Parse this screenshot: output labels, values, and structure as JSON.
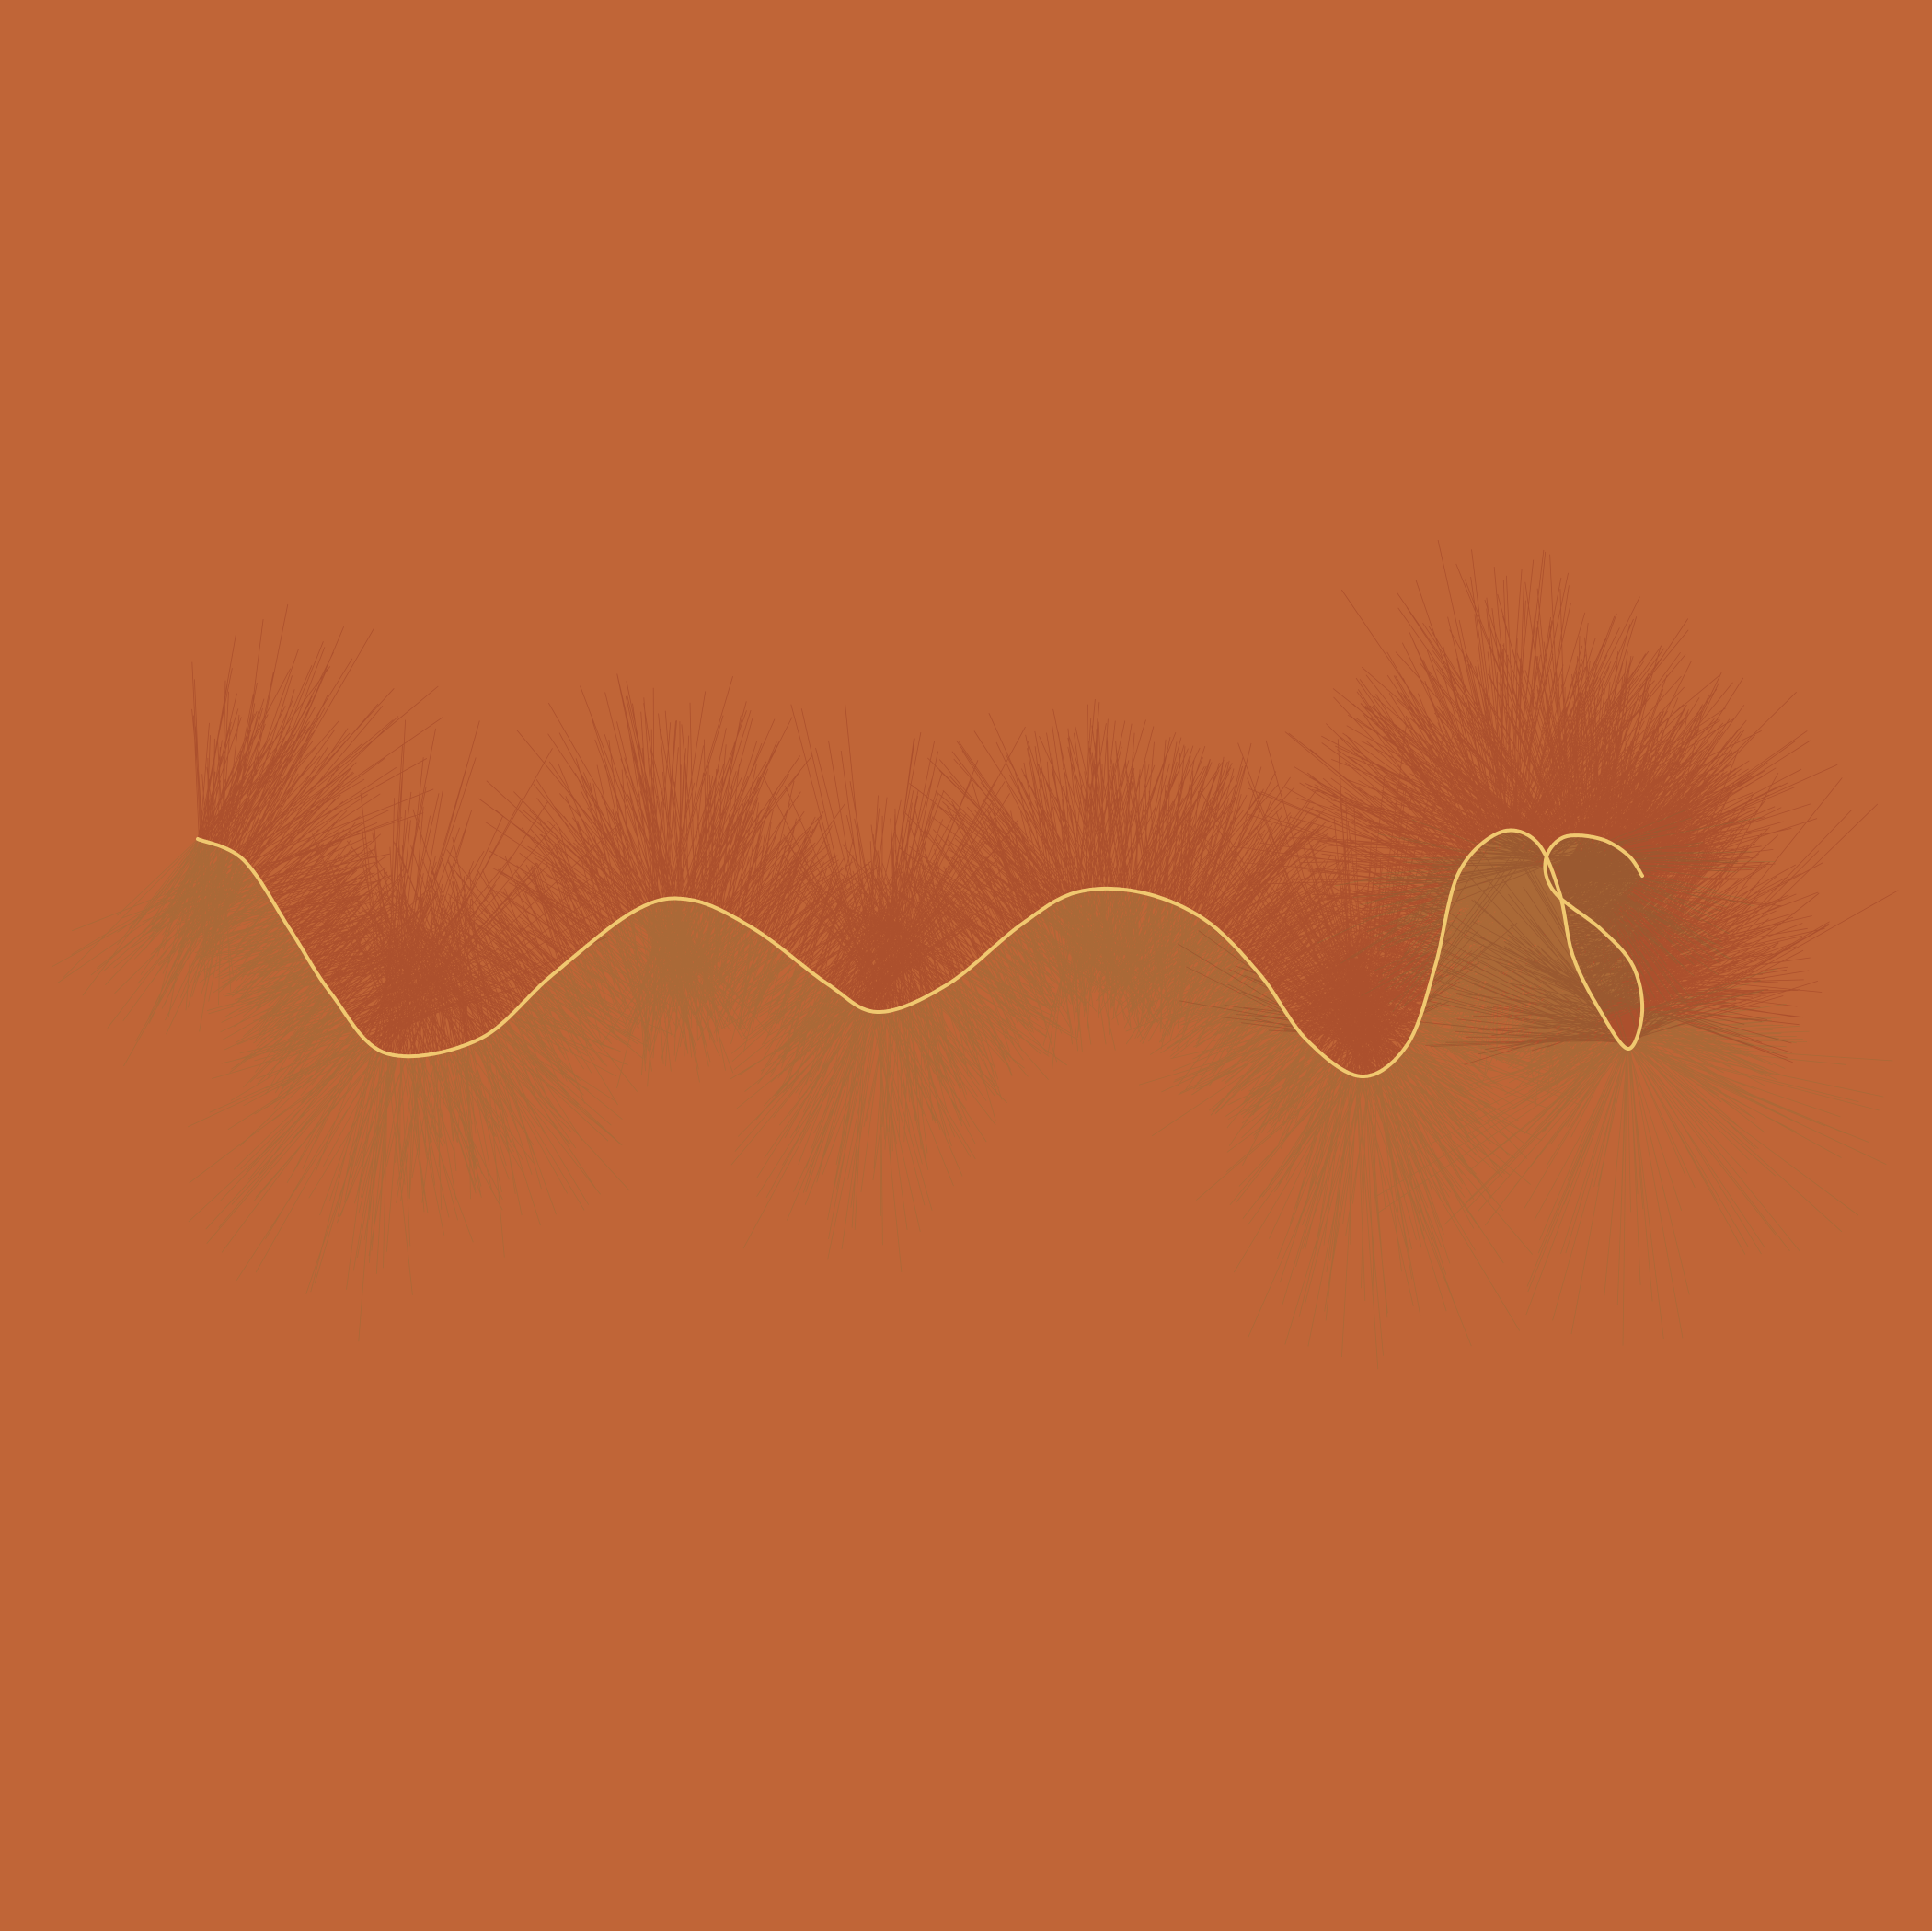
{
  "artwork": {
    "colors": {
      "background": "#c06537",
      "red_hairs": "#7a1e14",
      "green_hairs": "#5a7a3c",
      "curve": "#f0c870"
    }
  }
}
